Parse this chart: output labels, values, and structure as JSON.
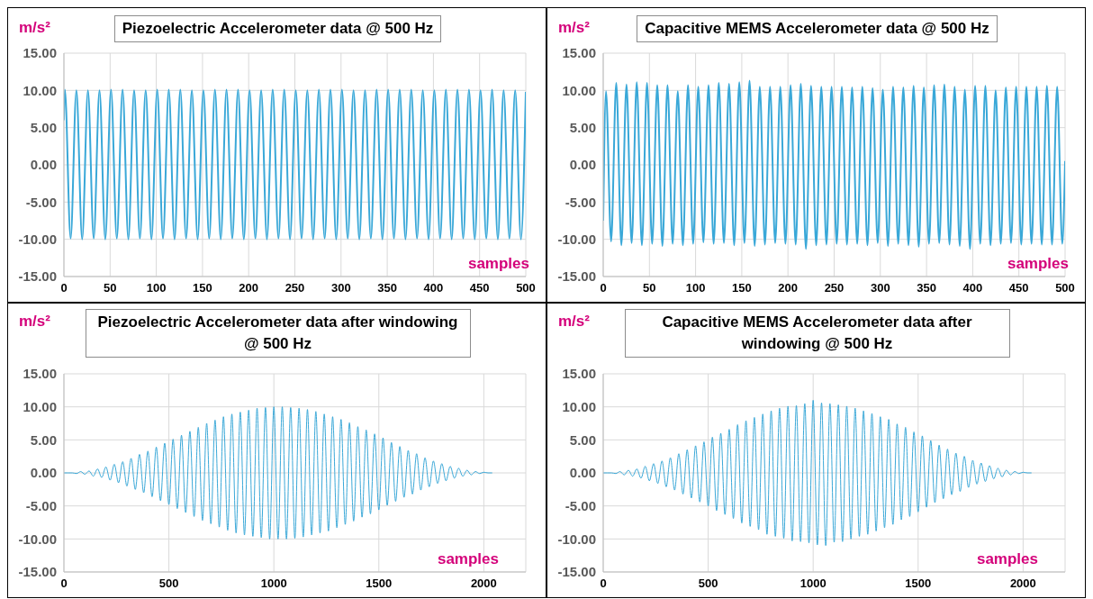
{
  "chart_data": [
    {
      "type": "line",
      "title": "Piezoelectric Accelerometer data @ 500 Hz",
      "ylabel": "m/s²",
      "xlabel": "samples",
      "xlim": [
        0,
        500
      ],
      "xticks": [
        0,
        50,
        100,
        150,
        200,
        250,
        300,
        350,
        400,
        450,
        500
      ],
      "ylim": [
        -15,
        15
      ],
      "yticks": [
        {
          "value": -15,
          "label": "-15.00"
        },
        {
          "value": -10,
          "label": "-10.00"
        },
        {
          "value": -5,
          "label": "-5.00"
        },
        {
          "value": 0,
          "label": "0.00"
        },
        {
          "value": 5,
          "label": "5.00"
        },
        {
          "value": 10,
          "label": "10.00"
        },
        {
          "value": 15,
          "label": "15.00"
        }
      ],
      "grid": true,
      "series": [
        {
          "color": "#3aa8d8",
          "x": [
            0,
            1,
            7.25,
            13.5,
            19.75,
            26,
            32.25,
            38.5,
            44.75,
            51,
            57.25,
            63.5,
            69.75,
            76,
            82.25,
            88.5,
            94.75,
            101,
            107.25,
            113.5,
            119.75,
            126,
            132.25,
            138.5,
            144.75,
            151,
            157.25,
            163.5,
            169.75,
            176,
            182.25,
            188.5,
            194.75,
            201,
            207.25,
            213.5,
            219.75,
            226,
            232.25,
            238.5,
            244.75,
            251,
            257.25,
            263.5,
            269.75,
            276,
            282.25,
            288.5,
            294.75,
            301,
            307.25,
            313.5,
            319.75,
            326,
            332.25,
            338.5,
            344.75,
            351,
            357.25,
            363.5,
            369.75,
            376,
            382.25,
            388.5,
            394.75,
            401,
            407.25,
            413.5,
            419.75,
            426,
            432.25,
            438.5,
            444.75,
            451,
            457.25,
            463.5,
            469.75,
            476,
            482.25,
            488.5,
            494.75,
            500
          ],
          "values": [
            6.0,
            10.1,
            -9.9,
            10.0,
            -10.0,
            10.0,
            -9.9,
            10.0,
            -10.0,
            10.1,
            -9.9,
            10.1,
            -10.0,
            10.0,
            -9.9,
            10.0,
            -10.0,
            10.1,
            -9.9,
            10.1,
            -10.0,
            10.1,
            -9.9,
            10.0,
            -10.0,
            10.0,
            -9.9,
            10.1,
            -10.0,
            10.1,
            -9.9,
            10.1,
            -10.0,
            10.0,
            -9.9,
            10.0,
            -10.0,
            10.1,
            -9.9,
            10.1,
            -10.0,
            10.0,
            -9.9,
            10.0,
            -10.0,
            10.1,
            -9.9,
            10.1,
            -10.0,
            10.1,
            -9.9,
            10.0,
            -10.0,
            10.0,
            -9.9,
            10.1,
            -10.0,
            10.1,
            -9.9,
            10.1,
            -10.0,
            10.1,
            -9.9,
            10.0,
            -10.0,
            10.0,
            -9.9,
            10.1,
            -10.0,
            10.1,
            -9.9,
            10.1,
            -10.0,
            10.0,
            -9.9,
            10.1,
            -10.0,
            10.0,
            -9.9,
            10.0,
            -10.0,
            9.8
          ]
        }
      ]
    },
    {
      "type": "line",
      "title": "Capacitive MEMS Accelerometer data @ 500 Hz",
      "ylabel": "m/s²",
      "xlabel": "samples",
      "xlim": [
        0,
        500
      ],
      "xticks": [
        0,
        50,
        100,
        150,
        200,
        250,
        300,
        350,
        400,
        450,
        500
      ],
      "ylim": [
        -15,
        15
      ],
      "yticks": [
        {
          "value": -15,
          "label": "-15.00"
        },
        {
          "value": -10,
          "label": "-10.00"
        },
        {
          "value": -5,
          "label": "-5.00"
        },
        {
          "value": 0,
          "label": "0.00"
        },
        {
          "value": 5,
          "label": "5.00"
        },
        {
          "value": 10,
          "label": "10.00"
        },
        {
          "value": 15,
          "label": "15.00"
        }
      ],
      "grid": true,
      "series": [
        {
          "color": "#3aa8d8",
          "x": [
            0,
            3,
            8.55,
            14.1,
            19.65,
            25.2,
            30.75,
            36.3,
            41.85,
            47.4,
            52.95,
            58.5,
            64.05,
            69.6,
            75.15,
            80.7,
            86.25,
            91.8,
            97.35,
            102.9,
            108.45,
            114,
            119.55,
            125.1,
            130.65,
            136.2,
            141.75,
            147.3,
            152.85,
            158.4,
            163.95,
            169.5,
            175.05,
            180.6,
            186.15,
            191.7,
            197.25,
            202.8,
            208.35,
            213.9,
            219.45,
            225,
            230.55,
            236.1,
            241.65,
            247.2,
            252.75,
            258.3,
            263.85,
            269.4,
            274.95,
            280.5,
            286.05,
            291.6,
            297.15,
            302.7,
            308.25,
            313.8,
            319.35,
            324.9,
            330.45,
            336,
            341.55,
            347.1,
            352.65,
            358.2,
            363.75,
            369.3,
            374.85,
            380.4,
            385.95,
            391.5,
            397.05,
            402.6,
            408.15,
            413.7,
            419.25,
            424.8,
            430.35,
            435.9,
            441.45,
            447,
            452.55,
            458.1,
            463.65,
            469.2,
            474.75,
            480.3,
            485.85,
            491.4,
            496.95,
            500
          ],
          "values": [
            -7.5,
            9.9,
            -10.3,
            11.0,
            -10.8,
            10.8,
            -10.5,
            11.1,
            -10.8,
            11.0,
            -10.6,
            10.7,
            -10.9,
            10.7,
            -10.6,
            9.9,
            -10.8,
            10.7,
            -10.6,
            10.5,
            -10.4,
            10.7,
            -10.6,
            11.0,
            -10.5,
            10.9,
            -10.8,
            11.1,
            -10.5,
            11.3,
            -10.9,
            10.5,
            -10.7,
            10.5,
            -10.5,
            10.5,
            -10.6,
            10.7,
            -10.7,
            10.9,
            -11.3,
            10.6,
            -10.8,
            10.5,
            -10.7,
            10.5,
            -10.6,
            10.5,
            -10.7,
            10.4,
            -10.6,
            10.5,
            -10.8,
            10.3,
            -10.5,
            10.1,
            -10.9,
            10.5,
            -10.6,
            10.4,
            -10.8,
            10.6,
            -11.0,
            10.4,
            -10.6,
            10.7,
            -10.5,
            10.8,
            -10.7,
            10.5,
            -10.9,
            10.1,
            -11.3,
            10.6,
            -10.6,
            10.6,
            -10.8,
            10.0,
            -10.6,
            10.4,
            -10.5,
            10.5,
            -10.7,
            10.5,
            -10.6,
            10.5,
            -10.7,
            10.6,
            -10.7,
            10.5,
            -10.6,
            0.5
          ]
        }
      ]
    },
    {
      "type": "line",
      "title": "Piezoelectric Accelerometer data after windowing @ 500 Hz",
      "ylabel": "m/s²",
      "xlabel": "samples",
      "xlim": [
        0,
        2200
      ],
      "xticks": [
        0,
        500,
        1000,
        1500,
        2000
      ],
      "ylim": [
        -15,
        15
      ],
      "yticks": [
        {
          "value": -15,
          "label": "-15.00"
        },
        {
          "value": -10,
          "label": "-10.00"
        },
        {
          "value": -5,
          "label": "-5.00"
        },
        {
          "value": 0,
          "label": "0.00"
        },
        {
          "value": 5,
          "label": "5.00"
        },
        {
          "value": 10,
          "label": "10.00"
        },
        {
          "value": 15,
          "label": "15.00"
        }
      ],
      "grid": true,
      "series": [
        {
          "color": "#3aa8d8",
          "x": [
            0,
            20,
            40,
            60,
            80,
            100,
            120,
            140,
            160,
            180,
            200,
            220,
            240,
            260,
            280,
            300,
            320,
            340,
            360,
            380,
            400,
            420,
            440,
            460,
            480,
            500,
            520,
            540,
            560,
            580,
            600,
            620,
            640,
            660,
            680,
            700,
            720,
            740,
            760,
            780,
            800,
            820,
            840,
            860,
            880,
            900,
            920,
            940,
            960,
            980,
            1000,
            1020,
            1040,
            1060,
            1080,
            1100,
            1120,
            1140,
            1160,
            1180,
            1200,
            1220,
            1240,
            1260,
            1280,
            1300,
            1320,
            1340,
            1360,
            1380,
            1400,
            1420,
            1440,
            1460,
            1480,
            1500,
            1520,
            1540,
            1560,
            1580,
            1600,
            1620,
            1640,
            1660,
            1680,
            1700,
            1720,
            1740,
            1760,
            1780,
            1800,
            1820,
            1840,
            1860,
            1880,
            1900,
            1920,
            1940,
            1960,
            1980,
            2000,
            2020,
            2040
          ],
          "values": [
            0,
            0,
            0,
            -0.1,
            0.2,
            -0.2,
            0.3,
            -0.5,
            0.6,
            -0.7,
            0.9,
            -1.1,
            1.3,
            -1.5,
            1.7,
            -2.0,
            2.2,
            -2.5,
            2.8,
            -3.0,
            3.3,
            -3.6,
            3.9,
            -4.2,
            4.5,
            -4.8,
            5.1,
            -5.4,
            5.7,
            -6.0,
            6.3,
            -6.6,
            6.9,
            -7.2,
            7.5,
            -7.7,
            8.0,
            -8.2,
            8.5,
            -8.7,
            8.9,
            -9.1,
            9.2,
            -9.4,
            9.5,
            -9.6,
            9.8,
            -9.8,
            9.9,
            -10.0,
            10.0,
            -10.0,
            10.0,
            -10.0,
            9.9,
            -9.9,
            9.8,
            -9.7,
            9.6,
            -9.4,
            9.3,
            -9.1,
            8.9,
            -8.8,
            8.5,
            -8.3,
            8.1,
            -7.8,
            7.6,
            -7.3,
            7.0,
            -6.7,
            6.5,
            -6.2,
            5.9,
            -5.6,
            5.3,
            -4.9,
            4.6,
            -4.3,
            4.0,
            -3.7,
            3.4,
            -3.2,
            2.9,
            -2.6,
            2.3,
            -2.1,
            1.8,
            -1.6,
            1.4,
            -1.2,
            1.0,
            -0.8,
            0.7,
            -0.5,
            0.4,
            -0.3,
            0.2,
            -0.1,
            0.1,
            0,
            0
          ]
        }
      ]
    },
    {
      "type": "line",
      "title": "Capacitive MEMS Accelerometer data after windowing @ 500 Hz",
      "ylabel": "m/s²",
      "xlabel": "samples",
      "xlim": [
        0,
        2200
      ],
      "xticks": [
        0,
        500,
        1000,
        1500,
        2000
      ],
      "ylim": [
        -15,
        15
      ],
      "yticks": [
        {
          "value": -15,
          "label": "-15.00"
        },
        {
          "value": -10,
          "label": "-10.00"
        },
        {
          "value": -5,
          "label": "-5.00"
        },
        {
          "value": 0,
          "label": "0.00"
        },
        {
          "value": 5,
          "label": "5.00"
        },
        {
          "value": 10,
          "label": "10.00"
        },
        {
          "value": 15,
          "label": "15.00"
        }
      ],
      "grid": true,
      "series": [
        {
          "color": "#3aa8d8",
          "x": [
            0,
            20,
            40,
            60,
            80,
            100,
            120,
            140,
            160,
            180,
            200,
            220,
            240,
            260,
            280,
            300,
            320,
            340,
            360,
            380,
            400,
            420,
            440,
            460,
            480,
            500,
            520,
            540,
            560,
            580,
            600,
            620,
            640,
            660,
            680,
            700,
            720,
            740,
            760,
            780,
            800,
            820,
            840,
            860,
            880,
            900,
            920,
            940,
            960,
            980,
            1000,
            1020,
            1040,
            1060,
            1080,
            1100,
            1120,
            1140,
            1160,
            1180,
            1200,
            1220,
            1240,
            1260,
            1280,
            1300,
            1320,
            1340,
            1360,
            1380,
            1400,
            1420,
            1440,
            1460,
            1480,
            1500,
            1520,
            1540,
            1560,
            1580,
            1600,
            1620,
            1640,
            1660,
            1680,
            1700,
            1720,
            1740,
            1760,
            1780,
            1800,
            1820,
            1840,
            1860,
            1880,
            1900,
            1920,
            1940,
            1960,
            1980,
            2000,
            2020,
            2040
          ],
          "values": [
            0,
            0,
            0,
            -0.1,
            0.2,
            -0.3,
            0.4,
            -0.5,
            0.6,
            -0.8,
            1.0,
            -1.2,
            1.4,
            -1.6,
            1.8,
            -2.1,
            2.3,
            -2.6,
            2.9,
            -3.2,
            3.5,
            -3.8,
            4.1,
            -4.4,
            4.7,
            -5.0,
            5.4,
            -5.7,
            6.0,
            -6.3,
            6.6,
            -6.9,
            7.3,
            -7.6,
            7.9,
            -8.1,
            8.4,
            -8.6,
            8.9,
            -9.3,
            9.4,
            -9.6,
            9.8,
            -9.9,
            10.1,
            -10.3,
            10.2,
            -10.4,
            10.5,
            -10.6,
            11.0,
            -10.9,
            10.6,
            -11.0,
            10.5,
            -10.5,
            10.3,
            -10.4,
            10.1,
            -10.0,
            9.8,
            -9.6,
            9.4,
            -9.3,
            9.0,
            -8.8,
            8.5,
            -8.3,
            8.1,
            -7.8,
            7.4,
            -7.1,
            6.9,
            -6.6,
            6.2,
            -5.9,
            5.6,
            -5.2,
            4.9,
            -4.5,
            4.2,
            -3.9,
            3.6,
            -3.3,
            3.0,
            -2.8,
            2.5,
            -2.2,
            1.9,
            -1.7,
            1.5,
            -1.3,
            1.1,
            -0.9,
            0.7,
            -0.6,
            0.4,
            -0.3,
            0.2,
            -0.1,
            0.1,
            0,
            0
          ]
        }
      ]
    }
  ]
}
